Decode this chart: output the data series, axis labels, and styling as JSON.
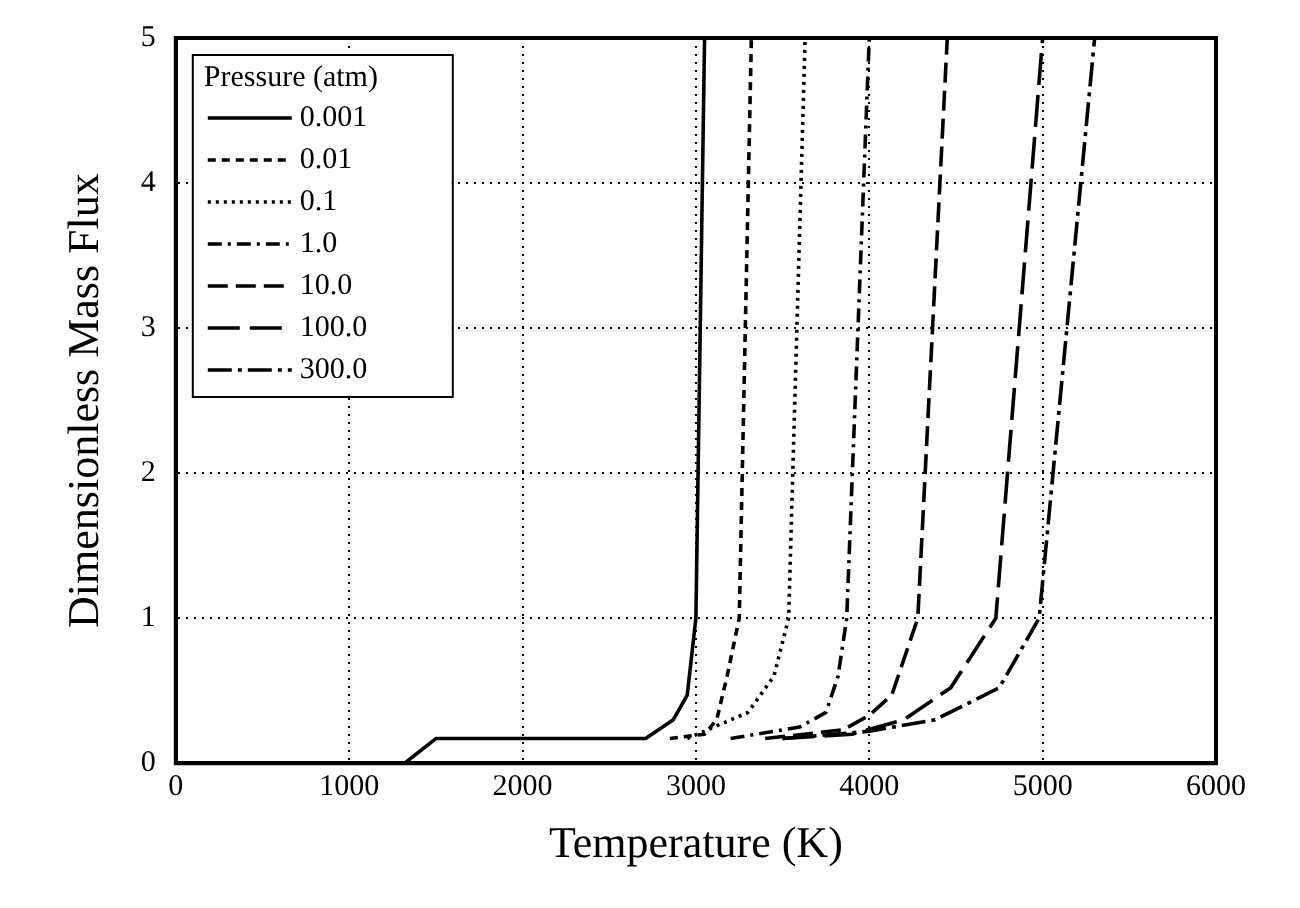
{
  "chart_data": {
    "type": "line",
    "xlabel": "Temperature (K)",
    "ylabel": "Dimensionless Mass Flux",
    "legend_title": "Pressure (atm)",
    "legend": "top left",
    "grid": true,
    "marker": "none",
    "xlim": [
      0,
      6000
    ],
    "xticks": [
      0,
      1000,
      2000,
      3000,
      4000,
      5000,
      6000
    ],
    "ylim": [
      0,
      5
    ],
    "yticks": [
      0,
      1,
      2,
      3,
      4,
      5
    ],
    "series": [
      {
        "name": "0.001",
        "color": "#000000",
        "line_style": "solid",
        "x": [
          0,
          1320,
          1500,
          2710,
          2870,
          2950,
          3000,
          3050
        ],
        "values": [
          0,
          0,
          0.17,
          0.17,
          0.3,
          0.47,
          1,
          5
        ]
      },
      {
        "name": "0.01",
        "color": "#000000",
        "line_style": "dashed",
        "x": [
          2850,
          3050,
          3120,
          3180,
          3250,
          3320
        ],
        "values": [
          0.17,
          0.2,
          0.3,
          0.6,
          1,
          5
        ]
      },
      {
        "name": "0.1",
        "color": "#000000",
        "line_style": "dotted",
        "x": [
          2950,
          3300,
          3450,
          3535,
          3630
        ],
        "values": [
          0.17,
          0.35,
          0.6,
          1,
          5
        ]
      },
      {
        "name": "1.0",
        "color": "#000000",
        "line_style": "dashed",
        "x": [
          3200,
          3600,
          3750,
          3820,
          3870,
          4000
        ],
        "values": [
          0.17,
          0.25,
          0.35,
          0.6,
          1,
          5
        ]
      },
      {
        "name": "10.0",
        "color": "#000000",
        "line_style": "dashed",
        "x": [
          3400,
          3850,
          4000,
          4130,
          4280,
          4450
        ],
        "values": [
          0.17,
          0.23,
          0.33,
          0.47,
          1,
          5
        ]
      },
      {
        "name": "100.0",
        "color": "#000000",
        "line_style": "dashed",
        "x": [
          3500,
          3900,
          4200,
          4470,
          4730,
          5000
        ],
        "values": [
          0.17,
          0.2,
          0.3,
          0.52,
          1,
          5
        ]
      },
      {
        "name": "300.0",
        "color": "#000000",
        "line_style": "dashed",
        "x": [
          3500,
          4000,
          4380,
          4750,
          4980,
          5300
        ],
        "values": [
          0.17,
          0.22,
          0.3,
          0.52,
          1,
          5
        ]
      }
    ]
  }
}
